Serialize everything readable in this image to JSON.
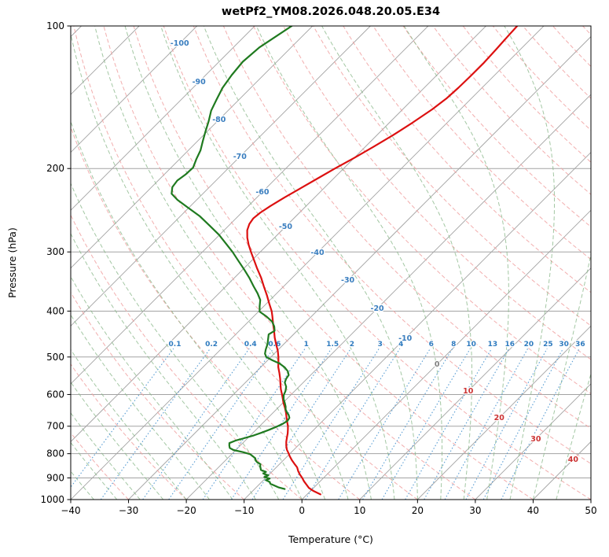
{
  "chart_data": {
    "type": "line",
    "diagram": "skew-t-log-p",
    "title": "wetPf2_YM08.2026.048.20.05.E34",
    "xlabel": "Temperature (°C)",
    "ylabel": "Pressure (hPa)",
    "xlim": [
      -40,
      50
    ],
    "x_ticks": [
      -40,
      -30,
      -20,
      -10,
      0,
      10,
      20,
      30,
      40,
      50
    ],
    "pressure_ticks": [
      100,
      200,
      300,
      400,
      500,
      600,
      700,
      800,
      900,
      1000
    ],
    "pressure_range": [
      100,
      1000
    ],
    "skew_degrees": 45,
    "series": [
      {
        "name": "temperature",
        "label": "Temperature",
        "color": "#dc1010",
        "points": [
          [
            975,
            2.3
          ],
          [
            960,
            0.6
          ],
          [
            945,
            -0.8
          ],
          [
            930,
            -1.8
          ],
          [
            915,
            -2.8
          ],
          [
            900,
            -3.7
          ],
          [
            885,
            -4.7
          ],
          [
            870,
            -5.6
          ],
          [
            855,
            -6.4
          ],
          [
            840,
            -7.5
          ],
          [
            825,
            -8.6
          ],
          [
            810,
            -9.6
          ],
          [
            800,
            -10.2
          ],
          [
            785,
            -11.2
          ],
          [
            770,
            -12.0
          ],
          [
            755,
            -12.7
          ],
          [
            740,
            -13.3
          ],
          [
            725,
            -13.9
          ],
          [
            710,
            -14.6
          ],
          [
            700,
            -15.1
          ],
          [
            685,
            -16.0
          ],
          [
            670,
            -16.9
          ],
          [
            655,
            -17.8
          ],
          [
            640,
            -18.8
          ],
          [
            625,
            -19.9
          ],
          [
            610,
            -20.9
          ],
          [
            600,
            -21.6
          ],
          [
            585,
            -22.7
          ],
          [
            570,
            -23.7
          ],
          [
            555,
            -24.7
          ],
          [
            540,
            -25.8
          ],
          [
            525,
            -27.0
          ],
          [
            510,
            -28.0
          ],
          [
            500,
            -28.7
          ],
          [
            485,
            -29.9
          ],
          [
            470,
            -31.3
          ],
          [
            455,
            -32.7
          ],
          [
            440,
            -34.0
          ],
          [
            425,
            -35.4
          ],
          [
            410,
            -36.8
          ],
          [
            400,
            -37.8
          ],
          [
            385,
            -39.6
          ],
          [
            370,
            -41.4
          ],
          [
            355,
            -43.4
          ],
          [
            340,
            -45.4
          ],
          [
            325,
            -47.7
          ],
          [
            310,
            -50.0
          ],
          [
            300,
            -51.6
          ],
          [
            290,
            -53.2
          ],
          [
            280,
            -54.7
          ],
          [
            270,
            -56.0
          ],
          [
            262,
            -56.7
          ],
          [
            255,
            -57.0
          ],
          [
            248,
            -56.8
          ],
          [
            240,
            -56.2
          ],
          [
            230,
            -55.2
          ],
          [
            220,
            -54.0
          ],
          [
            210,
            -52.8
          ],
          [
            200,
            -51.5
          ],
          [
            190,
            -50.0
          ],
          [
            180,
            -48.6
          ],
          [
            170,
            -47.2
          ],
          [
            160,
            -46.0
          ],
          [
            150,
            -44.9
          ],
          [
            142,
            -44.3
          ],
          [
            135,
            -44.1
          ],
          [
            128,
            -44.0
          ],
          [
            120,
            -44.0
          ],
          [
            112,
            -44.2
          ],
          [
            106,
            -44.4
          ],
          [
            100,
            -44.6
          ]
        ]
      },
      {
        "name": "dewpoint",
        "label": "Dew point",
        "color": "#1f7a1f",
        "points": [
          [
            950,
            -4.8
          ],
          [
            942,
            -6.2
          ],
          [
            934,
            -7.2
          ],
          [
            926,
            -8.2
          ],
          [
            918,
            -8.6
          ],
          [
            910,
            -9.6
          ],
          [
            903,
            -9.2
          ],
          [
            896,
            -10.4
          ],
          [
            889,
            -10.0
          ],
          [
            881,
            -11.2
          ],
          [
            874,
            -11.0
          ],
          [
            866,
            -12.2
          ],
          [
            858,
            -12.6
          ],
          [
            850,
            -13.0
          ],
          [
            842,
            -13.3
          ],
          [
            834,
            -14.2
          ],
          [
            826,
            -14.8
          ],
          [
            818,
            -15.2
          ],
          [
            810,
            -16.0
          ],
          [
            802,
            -16.8
          ],
          [
            794,
            -18.4
          ],
          [
            786,
            -20.4
          ],
          [
            778,
            -21.4
          ],
          [
            769,
            -21.9
          ],
          [
            760,
            -22.3
          ],
          [
            751,
            -21.7
          ],
          [
            742,
            -20.6
          ],
          [
            732,
            -19.4
          ],
          [
            722,
            -18.5
          ],
          [
            712,
            -17.7
          ],
          [
            702,
            -17.0
          ],
          [
            692,
            -16.4
          ],
          [
            682,
            -16.1
          ],
          [
            672,
            -16.3
          ],
          [
            663,
            -16.9
          ],
          [
            654,
            -17.7
          ],
          [
            645,
            -18.4
          ],
          [
            636,
            -18.9
          ],
          [
            626,
            -19.6
          ],
          [
            614,
            -20.5
          ],
          [
            602,
            -21.2
          ],
          [
            590,
            -21.6
          ],
          [
            578,
            -22.2
          ],
          [
            566,
            -23.2
          ],
          [
            556,
            -23.6
          ],
          [
            546,
            -23.8
          ],
          [
            536,
            -24.6
          ],
          [
            526,
            -25.8
          ],
          [
            516,
            -27.4
          ],
          [
            508,
            -29.2
          ],
          [
            500,
            -30.8
          ],
          [
            492,
            -31.6
          ],
          [
            482,
            -32.2
          ],
          [
            470,
            -32.8
          ],
          [
            458,
            -33.6
          ],
          [
            448,
            -34.3
          ],
          [
            440,
            -33.9
          ],
          [
            431,
            -34.7
          ],
          [
            421,
            -35.9
          ],
          [
            411,
            -37.7
          ],
          [
            401,
            -39.8
          ],
          [
            391,
            -40.7
          ],
          [
            379,
            -41.7
          ],
          [
            367,
            -43.3
          ],
          [
            354,
            -45.3
          ],
          [
            341,
            -47.3
          ],
          [
            327,
            -49.7
          ],
          [
            313,
            -52.3
          ],
          [
            300,
            -54.8
          ],
          [
            288,
            -57.4
          ],
          [
            276,
            -60.1
          ],
          [
            264,
            -63.3
          ],
          [
            252,
            -66.7
          ],
          [
            242,
            -70.1
          ],
          [
            233,
            -73.3
          ],
          [
            226,
            -75.4
          ],
          [
            219,
            -76.4
          ],
          [
            212,
            -76.7
          ],
          [
            206,
            -76.3
          ],
          [
            199,
            -76.2
          ],
          [
            191,
            -77.1
          ],
          [
            183,
            -77.9
          ],
          [
            175,
            -79.1
          ],
          [
            167,
            -80.3
          ],
          [
            159,
            -81.5
          ],
          [
            151,
            -82.9
          ],
          [
            143,
            -83.9
          ],
          [
            135,
            -84.9
          ],
          [
            127,
            -85.5
          ],
          [
            119,
            -85.9
          ],
          [
            111,
            -85.5
          ],
          [
            105,
            -84.5
          ],
          [
            100,
            -83.6
          ]
        ]
      }
    ],
    "background": {
      "grid_color": "#a3a3a3",
      "isotherms": {
        "min": -130,
        "max": 50,
        "step": 10,
        "color": "#a3a3a3",
        "labels": [
          {
            "text": "-100",
            "value": -100,
            "color": "#3a7ebf"
          },
          {
            "text": "-90",
            "value": -90,
            "color": "#3a7ebf"
          },
          {
            "text": "-80",
            "value": -80,
            "color": "#3a7ebf"
          },
          {
            "text": "-70",
            "value": -70,
            "color": "#3a7ebf"
          },
          {
            "text": "-60",
            "value": -60,
            "color": "#3a7ebf"
          },
          {
            "text": "-50",
            "value": -50,
            "color": "#3a7ebf"
          },
          {
            "text": "-40",
            "value": -40,
            "color": "#3a7ebf"
          },
          {
            "text": "-30",
            "value": -30,
            "color": "#3a7ebf"
          },
          {
            "text": "-20",
            "value": -20,
            "color": "#3a7ebf"
          },
          {
            "text": "-10",
            "value": -10,
            "color": "#3a7ebf"
          },
          {
            "text": "0",
            "value": 0,
            "color": "#808080"
          },
          {
            "text": "10",
            "value": 10,
            "color": "#cc3333"
          },
          {
            "text": "20",
            "value": 20,
            "color": "#cc3333"
          },
          {
            "text": "30",
            "value": 30,
            "color": "#cc3333"
          },
          {
            "text": "40",
            "value": 40,
            "color": "#cc3333"
          }
        ]
      },
      "dry_adiabats": {
        "theta_min": -30,
        "theta_max": 200,
        "step": 10,
        "color": "#f0a0a0"
      },
      "moist_adiabats": {
        "start_min": -40,
        "start_max": 44,
        "step": 4,
        "color": "#8cb98c"
      },
      "mixing_ratio": {
        "values": [
          0.1,
          0.2,
          0.4,
          0.6,
          1,
          1.5,
          2,
          3,
          4,
          6,
          8,
          10,
          13,
          16,
          20,
          25,
          30,
          36
        ],
        "color": "#4e97d1",
        "label_color": "#2f7bbf"
      }
    }
  }
}
